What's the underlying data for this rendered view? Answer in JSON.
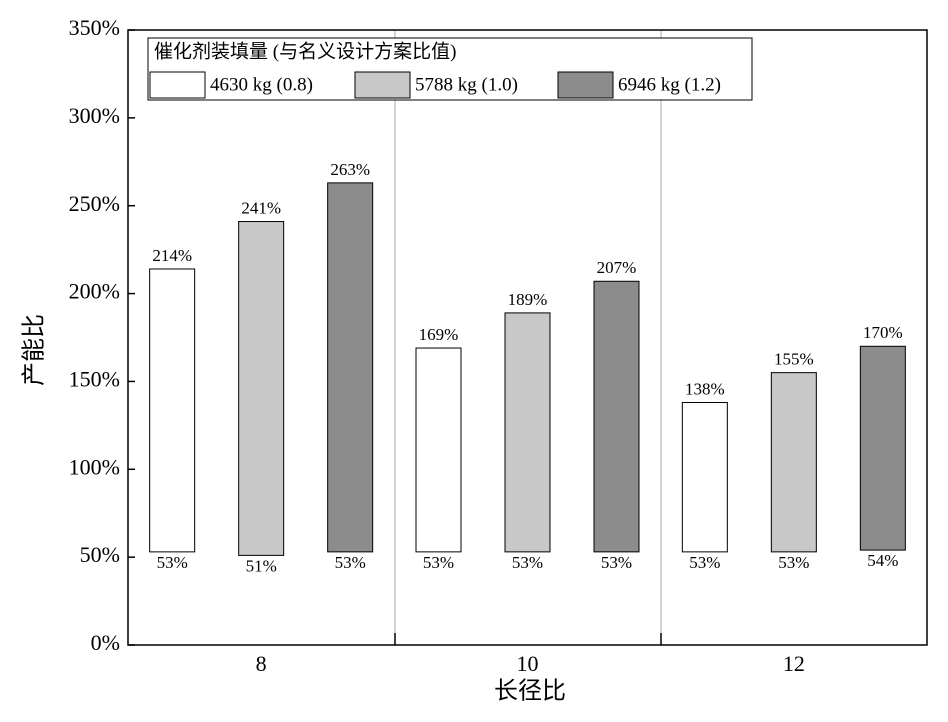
{
  "chart_data": {
    "type": "floating-bar",
    "x_label": "长径比",
    "y_label": "产能比",
    "legend_title": "催化剂装填量 (与名义设计方案比值)",
    "categories": [
      "8",
      "10",
      "12"
    ],
    "series": [
      {
        "name": "4630 kg (0.8)",
        "color": "#ffffff",
        "values": [
          214,
          169,
          138
        ],
        "value_labels": [
          "214%",
          "169%",
          "138%"
        ],
        "low": [
          53,
          53,
          53
        ],
        "low_labels": [
          "53%",
          "53%",
          "53%"
        ]
      },
      {
        "name": "5788 kg (1.0)",
        "color": "#c8c8c8",
        "values": [
          241,
          189,
          155
        ],
        "value_labels": [
          "241%",
          "189%",
          "155%"
        ],
        "low": [
          51,
          53,
          53
        ],
        "low_labels": [
          "51%",
          "53%",
          "53%"
        ]
      },
      {
        "name": "6946 kg (1.2)",
        "color": "#8c8c8c",
        "values": [
          263,
          207,
          170
        ],
        "value_labels": [
          "263%",
          "207%",
          "170%"
        ],
        "low": [
          53,
          53,
          54
        ],
        "low_labels": [
          "53%",
          "53%",
          "54%"
        ]
      }
    ],
    "ylim": [
      0,
      350
    ],
    "yticks": [
      {
        "value": 0,
        "label": "0%"
      },
      {
        "value": 50,
        "label": "50%"
      },
      {
        "value": 100,
        "label": "100%"
      },
      {
        "value": 150,
        "label": "150%"
      },
      {
        "value": 200,
        "label": "200%"
      },
      {
        "value": 250,
        "label": "250%"
      },
      {
        "value": 300,
        "label": "300%"
      },
      {
        "value": 350,
        "label": "350%"
      }
    ],
    "legend_position": "upper left"
  }
}
